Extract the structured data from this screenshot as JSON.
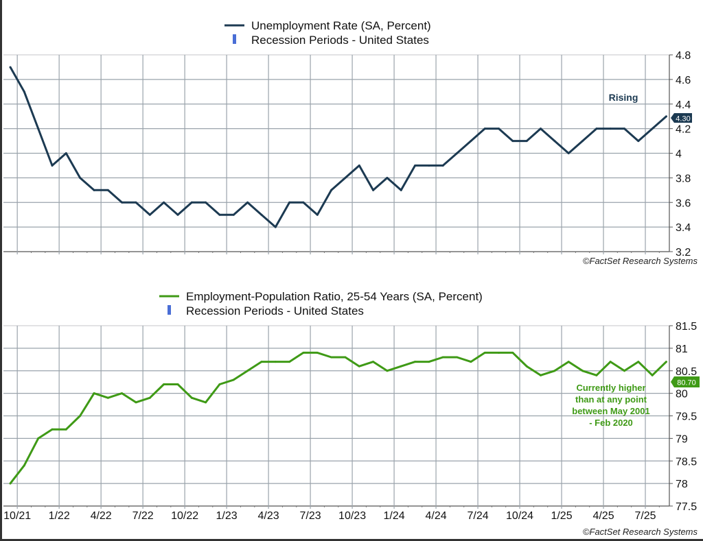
{
  "colors": {
    "unemployment": "#1c3a52",
    "employment": "#3f9a16",
    "recession": "#4a6ed6",
    "grid": "#9aa3ab"
  },
  "x_ticks": [
    "10/21",
    "1/22",
    "4/22",
    "7/22",
    "10/22",
    "1/23",
    "4/23",
    "7/23",
    "10/23",
    "1/24",
    "4/24",
    "7/24",
    "10/24",
    "1/25",
    "4/25",
    "7/25"
  ],
  "chart_data": [
    {
      "type": "line",
      "title": "",
      "legend": [
        "Unemployment Rate (SA, Percent)",
        "Recession Periods - United States"
      ],
      "legend_placement": "top-center",
      "x_start": "2021-09",
      "x_end": "2025-08",
      "y_ticks": [
        "4.8",
        "4.6",
        "4.4",
        "4.2",
        "4",
        "3.8",
        "3.6",
        "3.4",
        "3.2"
      ],
      "ylim": [
        3.2,
        4.8
      ],
      "values": [
        4.7,
        4.5,
        4.2,
        3.9,
        4.0,
        3.8,
        3.7,
        3.7,
        3.6,
        3.6,
        3.5,
        3.6,
        3.5,
        3.6,
        3.6,
        3.5,
        3.5,
        3.6,
        3.5,
        3.4,
        3.6,
        3.6,
        3.5,
        3.7,
        3.8,
        3.9,
        3.7,
        3.8,
        3.7,
        3.9,
        3.9,
        3.9,
        4.0,
        4.1,
        4.2,
        4.2,
        4.1,
        4.1,
        4.2,
        4.1,
        4.0,
        4.1,
        4.2,
        4.2,
        4.2,
        4.1,
        4.2,
        4.3
      ],
      "last_value_label": "4.30",
      "annotation": "Rising",
      "source": "©FactSet Research Systems"
    },
    {
      "type": "line",
      "title": "",
      "legend": [
        "Employment-Population Ratio, 25-54 Years (SA, Percent)",
        "Recession Periods - United States"
      ],
      "legend_placement": "top-center",
      "x_start": "2021-09",
      "x_end": "2025-08",
      "y_ticks": [
        "81.5",
        "81",
        "80.5",
        "80",
        "79.5",
        "79",
        "78.5",
        "78",
        "77.5"
      ],
      "ylim": [
        77.5,
        81.5
      ],
      "values": [
        78.0,
        78.4,
        79.0,
        79.2,
        79.2,
        79.5,
        80.0,
        79.9,
        80.0,
        79.8,
        79.9,
        80.2,
        80.2,
        79.9,
        79.8,
        80.2,
        80.3,
        80.5,
        80.7,
        80.7,
        80.7,
        80.9,
        80.9,
        80.8,
        80.8,
        80.6,
        80.7,
        80.5,
        80.6,
        80.7,
        80.7,
        80.8,
        80.8,
        80.7,
        80.9,
        80.9,
        80.9,
        80.6,
        80.4,
        80.5,
        80.7,
        80.5,
        80.4,
        80.7,
        80.5,
        80.7,
        80.4,
        80.7
      ],
      "last_value_label": "80.70",
      "annotation": [
        "Currently higher",
        "than at any point",
        "between May 2001",
        "- Feb 2020"
      ],
      "source": "©FactSet Research Systems"
    }
  ]
}
